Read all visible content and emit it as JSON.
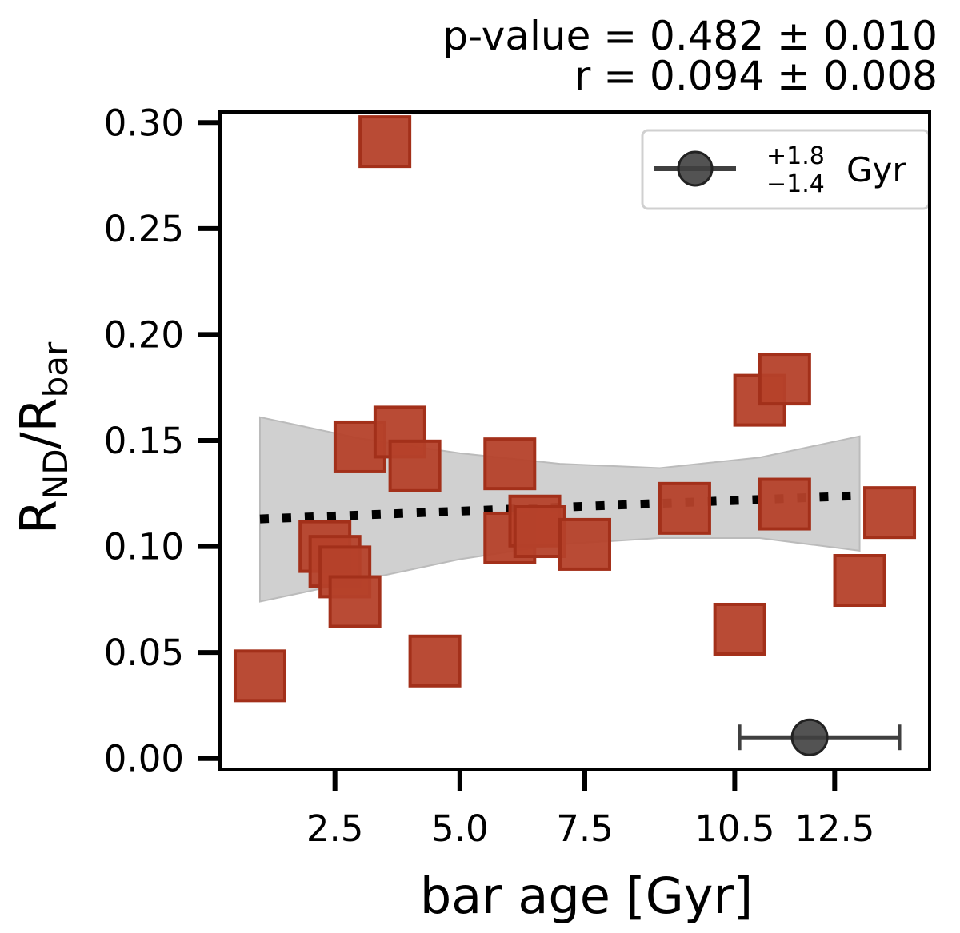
{
  "chart_data": {
    "type": "scatter",
    "stats": {
      "pvalue": "p-value = 0.482 ± 0.010",
      "r": "r = 0.094 ± 0.008"
    },
    "xlabel": "bar age [Gyr]",
    "ylabel": {
      "main": "R",
      "sub1": "ND",
      "slash": "/R",
      "sub2": "bar"
    },
    "xlim": [
      0.2,
      14.4
    ],
    "ylim": [
      -0.005,
      0.305
    ],
    "xticks": [
      2.5,
      5.0,
      7.5,
      10.5,
      12.5
    ],
    "xtick_labels": [
      "2.5",
      "5.0",
      "7.5",
      "10.5",
      "12.5"
    ],
    "yticks": [
      0.0,
      0.05,
      0.1,
      0.15,
      0.2,
      0.25,
      0.3
    ],
    "ytick_labels": [
      "0.00",
      "0.05",
      "0.10",
      "0.15",
      "0.20",
      "0.25",
      "0.30"
    ],
    "points": [
      {
        "x": 1.0,
        "y": 0.039
      },
      {
        "x": 2.3,
        "y": 0.1
      },
      {
        "x": 2.5,
        "y": 0.093
      },
      {
        "x": 2.7,
        "y": 0.088
      },
      {
        "x": 2.9,
        "y": 0.074
      },
      {
        "x": 3.0,
        "y": 0.147
      },
      {
        "x": 3.5,
        "y": 0.291
      },
      {
        "x": 3.8,
        "y": 0.154
      },
      {
        "x": 4.1,
        "y": 0.138
      },
      {
        "x": 4.5,
        "y": 0.046
      },
      {
        "x": 6.0,
        "y": 0.139
      },
      {
        "x": 6.0,
        "y": 0.104
      },
      {
        "x": 6.5,
        "y": 0.112
      },
      {
        "x": 6.6,
        "y": 0.107
      },
      {
        "x": 7.5,
        "y": 0.101
      },
      {
        "x": 9.5,
        "y": 0.118
      },
      {
        "x": 10.6,
        "y": 0.061
      },
      {
        "x": 11.0,
        "y": 0.169
      },
      {
        "x": 11.5,
        "y": 0.179
      },
      {
        "x": 11.5,
        "y": 0.12
      },
      {
        "x": 13.0,
        "y": 0.084
      },
      {
        "x": 13.6,
        "y": 0.116
      }
    ],
    "fit_line": {
      "x": [
        1.0,
        13.0
      ],
      "y": [
        0.113,
        0.124
      ]
    },
    "confidence_band": {
      "x": [
        1.0,
        3.0,
        5.0,
        7.0,
        9.0,
        11.0,
        13.0
      ],
      "upper": [
        0.161,
        0.151,
        0.144,
        0.139,
        0.137,
        0.142,
        0.152
      ],
      "lower": [
        0.074,
        0.084,
        0.094,
        0.101,
        0.104,
        0.104,
        0.098
      ]
    },
    "legend": {
      "position": "top-right",
      "label_sup": "+1.8",
      "label_sub": "−1.4",
      "label_unit": "Gyr"
    },
    "error_example": {
      "x": 12.0,
      "y": 0.01,
      "xerr_plus": 1.8,
      "xerr_minus": 1.4
    },
    "colors": {
      "marker_fill": "#b5412a",
      "marker_edge": "#a3301a",
      "band": "#c8c8c8",
      "band_edge": "#b0b0b0",
      "fit": "#000000",
      "error_marker": "#404040"
    }
  }
}
